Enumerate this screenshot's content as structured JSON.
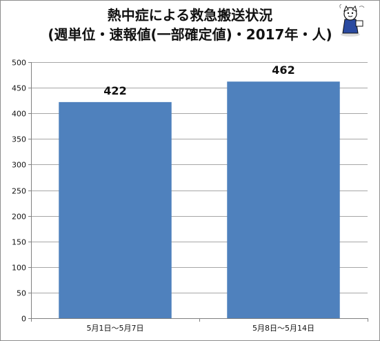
{
  "chart_data": {
    "type": "bar",
    "title_line1": "熱中症による救急搬送状況",
    "title_line2": "(週単位・速報値(一部確定値)・2017年・人)",
    "categories": [
      "5月1日～5月7日",
      "5月8日～5月14日"
    ],
    "values": [
      422,
      462
    ],
    "ylim": [
      0,
      500
    ],
    "yticks": [
      0,
      50,
      100,
      150,
      200,
      250,
      300,
      350,
      400,
      450,
      500
    ],
    "grid": true,
    "bar_color": "#4f81bd",
    "grid_color": "#a6a6a6"
  },
  "mascot": {
    "icon": "mascot-character-icon"
  }
}
